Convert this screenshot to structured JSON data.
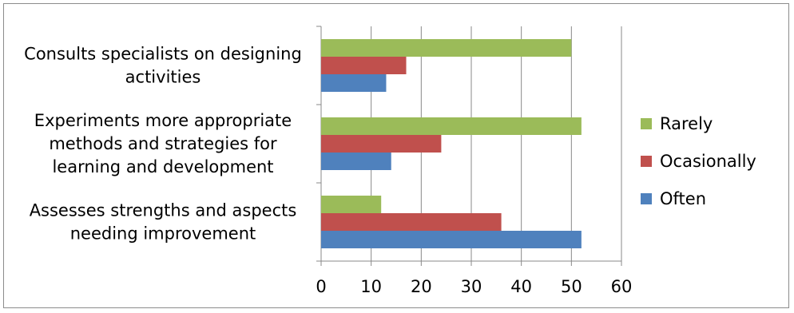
{
  "chart_data": {
    "type": "bar",
    "orientation": "horizontal",
    "categories": [
      [
        "Consults specialists on designing",
        "activities"
      ],
      [
        "Experiments more appropriate",
        "methods and strategies for",
        "learning and development"
      ],
      [
        "Assesses strengths and aspects",
        "needing improvement"
      ]
    ],
    "series": [
      {
        "name": "Rarely",
        "color": "#9bbb59",
        "values": [
          50,
          52,
          12
        ]
      },
      {
        "name": "Ocasionally",
        "color": "#c0504d",
        "values": [
          17,
          24,
          36
        ]
      },
      {
        "name": "Often",
        "color": "#4f81bd",
        "values": [
          13,
          14,
          52
        ]
      }
    ],
    "xlim": [
      0,
      60
    ],
    "xticks": [
      0,
      10,
      20,
      30,
      40,
      50,
      60
    ],
    "grid": "vertical",
    "legend_position": "right"
  }
}
